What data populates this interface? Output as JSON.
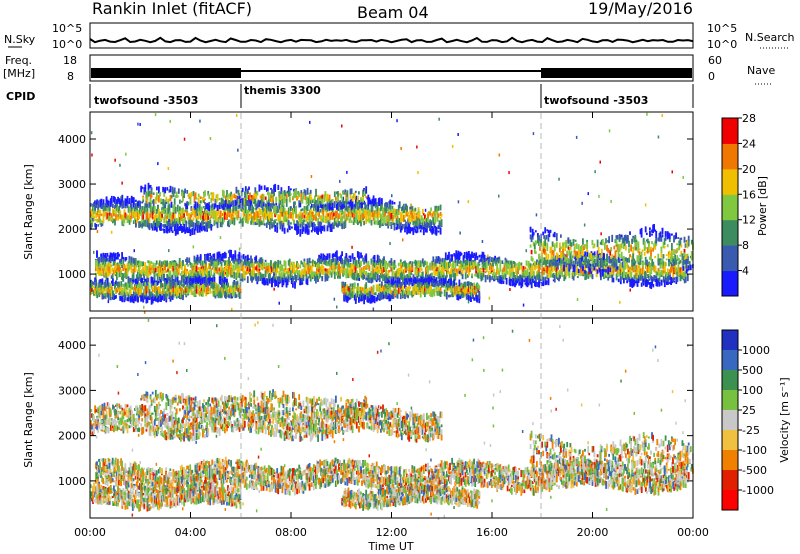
{
  "header": {
    "title": "Rankin Inlet (fitACF)",
    "beam": "Beam 04",
    "date": "19/May/2016"
  },
  "nsky_panel": {
    "left_label": "N.Sky",
    "right_label": "N.Search",
    "left_ticks": [
      "10^5",
      "10^0"
    ],
    "right_ticks": [
      "10^5",
      "10^0"
    ]
  },
  "freq_panel": {
    "left_label_1": "Freq.",
    "left_label_2": "[MHz]",
    "right_label": "Nave",
    "left_ticks": [
      "18",
      "8"
    ],
    "right_ticks": [
      "60",
      "0"
    ]
  },
  "cpid_panel": {
    "label": "CPID",
    "segments": [
      {
        "name": "twofsound -3503",
        "start_hour": 0,
        "end_hour": 6
      },
      {
        "name": "themis 3300",
        "start_hour": 6,
        "end_hour": 18
      },
      {
        "name": "twofsound -3503",
        "start_hour": 18,
        "end_hour": 24
      }
    ]
  },
  "chart_data": [
    {
      "type": "heatmap",
      "name": "power",
      "ylabel": "Slant Range [km]",
      "y_ticks": [
        "1000",
        "2000",
        "3000",
        "4000"
      ],
      "ylim": [
        180,
        4600
      ],
      "colorbar_label": "Power [dB]",
      "colorbar_ticks": [
        "4",
        "8",
        "12",
        "16",
        "20",
        "24",
        "28"
      ],
      "colors": [
        "#1a1aff",
        "#3a5ab0",
        "#3c8c60",
        "#80c840",
        "#f0c000",
        "#f07800",
        "#f00000"
      ]
    },
    {
      "type": "heatmap",
      "name": "velocity",
      "ylabel": "Slant Range [km]",
      "y_ticks": [
        "1000",
        "2000",
        "3000",
        "4000"
      ],
      "ylim": [
        180,
        4600
      ],
      "colorbar_label": "Velocity [m s⁻¹]",
      "colorbar_ticks": [
        "1000",
        "500",
        "100",
        "25",
        "-25",
        "-100",
        "-500",
        "-1000"
      ],
      "colors": [
        "#2030c0",
        "#3868c0",
        "#3c9050",
        "#78c040",
        "#c8c8c8",
        "#f0c040",
        "#f08000",
        "#e02000",
        "#ff0000"
      ]
    }
  ],
  "x_axis": {
    "ticks": [
      "00:00",
      "04:00",
      "08:00",
      "12:00",
      "16:00",
      "20:00",
      "00:00"
    ],
    "label": "Time UT"
  }
}
